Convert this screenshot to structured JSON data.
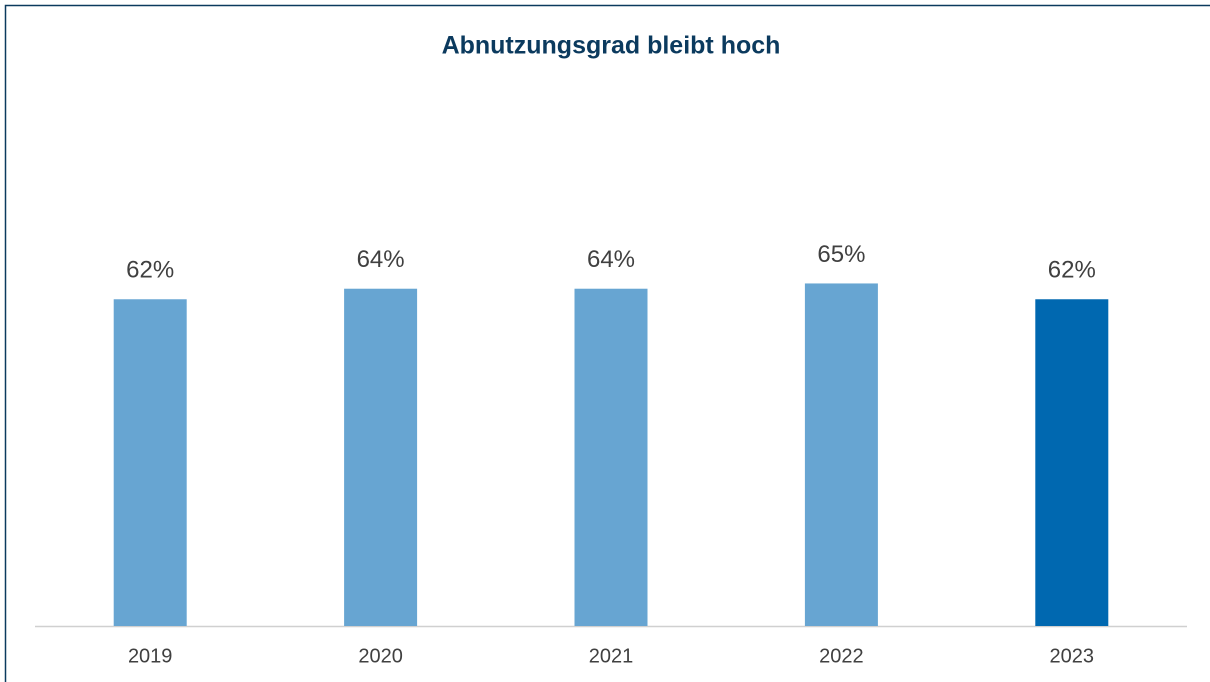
{
  "chart_data": {
    "type": "bar",
    "title": "Abnutzungsgrad bleibt hoch",
    "categories": [
      "2019",
      "2020",
      "2021",
      "2022",
      "2023"
    ],
    "values": [
      62,
      64,
      64,
      65,
      62
    ],
    "value_labels": [
      "62%",
      "64%",
      "64%",
      "65%",
      "62%"
    ],
    "colors": [
      "#67a5d2",
      "#67a5d2",
      "#67a5d2",
      "#67a5d2",
      "#0068b0"
    ],
    "ylim": [
      0,
      100
    ]
  }
}
